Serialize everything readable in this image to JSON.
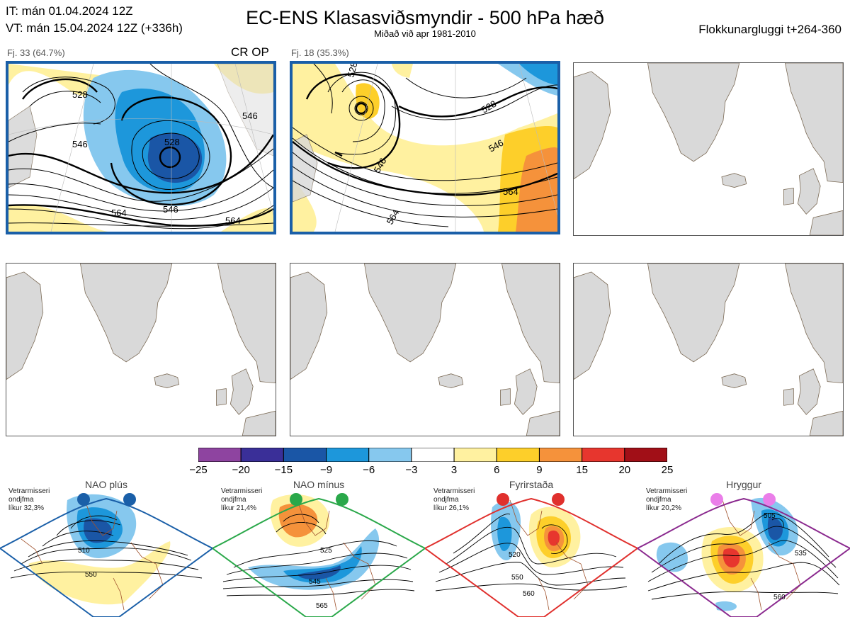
{
  "header": {
    "it_line": "IT: mán 01.04.2024 12Z",
    "vt_line": "VT: mán 15.04.2024 12Z  (+336h)",
    "title": "EC-ENS Klasasviðsmyndir - 500 hPa hæð",
    "subtitle": "Miðað við apr 1981-2010",
    "window": "Flokkunargluggi t+264-360"
  },
  "clusters": [
    {
      "label": "Fj. 33 (64.7%)",
      "tag": "CR OP",
      "contour_labels": [
        "528",
        "528",
        "546",
        "546",
        "546",
        "564",
        "564"
      ]
    },
    {
      "label": "Fj. 18 (35.3%)",
      "contour_labels": [
        "528",
        "528",
        "546",
        "546",
        "564",
        "564"
      ]
    }
  ],
  "colorbar": {
    "ticks": [
      "−25",
      "−20",
      "−15",
      "−9",
      "−6",
      "−3",
      "3",
      "6",
      "9",
      "15",
      "20",
      "25"
    ],
    "colors": [
      "#8e44a0",
      "#3a2f98",
      "#1a56a6",
      "#1d97db",
      "#86c8ee",
      "#ffffff",
      "#fff1a0",
      "#fdcf2a",
      "#f5923b",
      "#e7362e",
      "#a10f17"
    ]
  },
  "regimes": [
    {
      "name": "NAO plús",
      "line1": "Vetrarmisseri",
      "line2": "ondjfma",
      "line3": "líkur 32,3%",
      "color": "#1a5fa8",
      "contour_labels": [
        "510",
        "550"
      ]
    },
    {
      "name": "NAO mínus",
      "line1": "Vetrarmisseri",
      "line2": "ondjfma",
      "line3": "líkur 21,4%",
      "color": "#2aa84a",
      "contour_labels": [
        "525",
        "545",
        "565"
      ]
    },
    {
      "name": "Fyrirstaða",
      "line1": "Vetrarmisseri",
      "line2": "ondjfma",
      "line3": "líkur 26,1%",
      "color": "#e0302d",
      "contour_labels": [
        "520",
        "550",
        "560"
      ]
    },
    {
      "name": "Hryggur",
      "line1": "Vetrarmisseri",
      "line2": "ondjfma",
      "line3": "líkur 20,2%",
      "color": "#8b2a8f",
      "contour_labels": [
        "505",
        "535",
        "560"
      ]
    }
  ]
}
